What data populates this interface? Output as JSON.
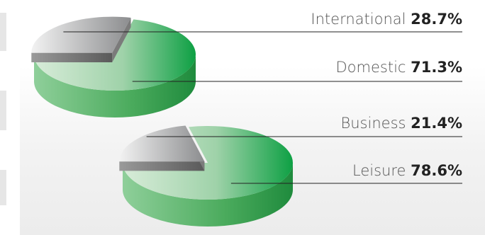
{
  "chart_data": [
    {
      "type": "pie",
      "categories": [
        "International",
        "Domestic"
      ],
      "values": [
        28.7,
        71.3
      ],
      "value_labels": [
        "28.7%",
        "71.3%"
      ],
      "colors": [
        "#a9aaac",
        "#2fa24a"
      ],
      "legend": "right"
    },
    {
      "type": "pie",
      "categories": [
        "Business",
        "Leisure"
      ],
      "values": [
        21.4,
        78.6
      ],
      "value_labels": [
        "21.4%",
        "78.6%"
      ],
      "colors": [
        "#a9aaac",
        "#2fa24a"
      ],
      "legend": "right"
    }
  ]
}
